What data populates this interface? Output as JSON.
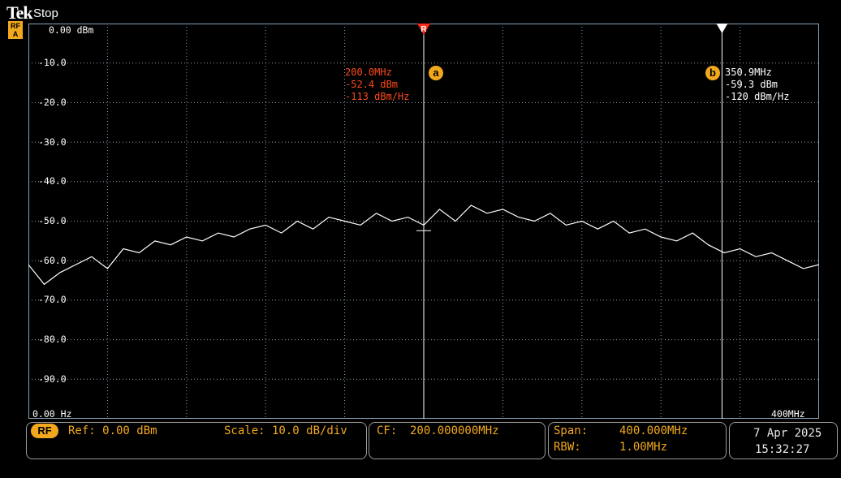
{
  "header": {
    "logo": "Tek",
    "acq_state": "Stop",
    "channel_badge_line1": "RF",
    "channel_badge_line2": "A"
  },
  "display": {
    "y_tick_labels": [
      "0.00 dBm",
      "-10.0",
      "-20.0",
      "-30.0",
      "-40.0",
      "-50.0",
      "-60.0",
      "-70.0",
      "-80.0",
      "-90.0"
    ],
    "x_start_label": "0.00 Hz",
    "x_end_label": "400MHz"
  },
  "markers": {
    "a": {
      "icon": "a",
      "ref_flag": "R",
      "freq": "200.0MHz",
      "level": "-52.4 dBm",
      "density": "-113 dBm/Hz"
    },
    "b": {
      "icon": "b",
      "freq": "350.9MHz",
      "level": "-59.3 dBm",
      "density": "-120 dBm/Hz"
    }
  },
  "status_bar": {
    "rf_pill": "RF",
    "ref": "Ref: 0.00 dBm",
    "scale": "Scale: 10.0 dB/div",
    "cf_label": "CF:",
    "cf_value": "200.000000MHz",
    "span_label": "Span:",
    "span_value": "400.000MHz",
    "rbw_label": "RBW:",
    "rbw_value": "1.00MHz",
    "date": "7 Apr 2025",
    "time": "15:32:27"
  },
  "colors": {
    "accent": "#f2a81d",
    "marker_a": "#ff4a1a",
    "trace": "#ffffff",
    "grid": "#8aa3b8"
  },
  "chart_data": {
    "type": "line",
    "xlabel": "",
    "ylabel": "",
    "x_range_mhz": [
      0,
      400
    ],
    "ylim_dbm": [
      -100,
      0
    ],
    "grid": true,
    "marker_a": {
      "x_mhz": 200.0,
      "y_dbm": -52.4
    },
    "marker_b": {
      "x_mhz": 350.9,
      "y_dbm": -59.3
    },
    "series": [
      {
        "x_mhz": [
          0,
          8,
          16,
          24,
          32,
          40,
          48,
          56,
          64,
          72,
          80,
          88,
          96,
          104,
          112,
          120,
          128,
          136,
          144,
          152,
          160,
          168,
          176,
          184,
          192,
          200,
          208,
          216,
          224,
          232,
          240,
          248,
          256,
          264,
          272,
          280,
          288,
          296,
          304,
          312,
          320,
          328,
          336,
          344,
          352,
          360,
          368,
          376,
          384,
          392,
          400
        ],
        "y_dbm": [
          -61,
          -66,
          -63,
          -61,
          -59,
          -62,
          -57,
          -58,
          -55,
          -56,
          -54,
          -55,
          -53,
          -54,
          -52,
          -51,
          -53,
          -50,
          -52,
          -49,
          -50,
          -51,
          -48,
          -50,
          -49,
          -51,
          -47,
          -50,
          -46,
          -48,
          -47,
          -49,
          -50,
          -48,
          -51,
          -50,
          -52,
          -50,
          -53,
          -52,
          -54,
          -55,
          -53,
          -56,
          -58,
          -57,
          -59,
          -58,
          -60,
          -62,
          -61
        ]
      }
    ]
  }
}
